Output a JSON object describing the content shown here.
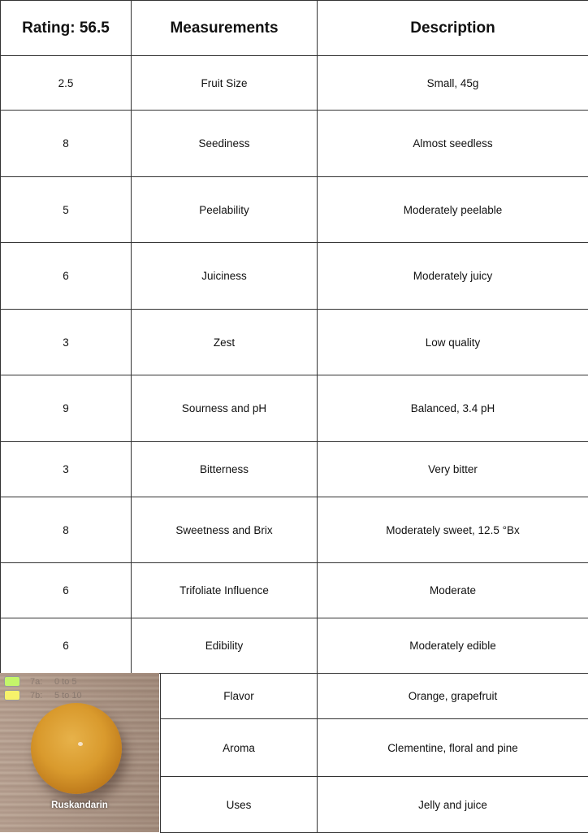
{
  "header": {
    "rating": "Rating: 56.5",
    "measurements": "Measurements",
    "description": "Description"
  },
  "rows": [
    {
      "score": "2.5",
      "measurement": "Fruit Size",
      "description": "Small, 45g"
    },
    {
      "score": "8",
      "measurement": "Seediness",
      "description": "Almost seedless"
    },
    {
      "score": "5",
      "measurement": "Peelability",
      "description": "Moderately peelable"
    },
    {
      "score": "6",
      "measurement": "Juiciness",
      "description": "Moderately juicy"
    },
    {
      "score": "3",
      "measurement": "Zest",
      "description": "Low quality"
    },
    {
      "score": "9",
      "measurement": "Sourness and pH",
      "description": "Balanced, 3.4 pH"
    },
    {
      "score": "3",
      "measurement": "Bitterness",
      "description": "Very bitter"
    },
    {
      "score": "8",
      "measurement": "Sweetness and Brix",
      "description": "Moderately sweet, 12.5 °Bx"
    },
    {
      "score": "6",
      "measurement": "Trifoliate Influence",
      "description": "Moderate"
    },
    {
      "score": "6",
      "measurement": "Edibility",
      "description": "Moderately edible"
    },
    {
      "measurement": "Flavor",
      "description": "Orange, grapefruit"
    },
    {
      "measurement": "Aroma",
      "description": "Clementine, floral and pine"
    },
    {
      "measurement": "Uses",
      "description": "Jelly and juice"
    }
  ],
  "photo": {
    "caption": "Ruskandarin",
    "legend": [
      {
        "key": "7a:",
        "range": "0 to 5",
        "color": "#c4f56a"
      },
      {
        "key": "7b:",
        "range": "5 to 10",
        "color": "#f6f26a"
      }
    ]
  }
}
